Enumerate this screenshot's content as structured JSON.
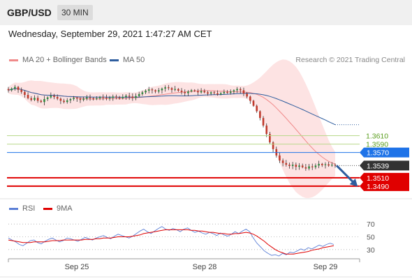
{
  "header": {
    "pair": "GBP/USD",
    "timeframe": "30 MIN"
  },
  "timestamp": "Wednesday, September 29, 2021 1:47:27 AM CET",
  "legend": {
    "bollinger": {
      "label": "MA 20 + Bollinger Bands",
      "color": "#f08a8a"
    },
    "ma50": {
      "label": "MA 50",
      "color": "#2e5d9e"
    }
  },
  "credit": "Research © 2021 Trading Central",
  "rsi_legend": {
    "rsi": {
      "label": "RSI",
      "color": "#5b7fd6"
    },
    "ma9": {
      "label": "9MA",
      "color": "#e00000"
    }
  },
  "chart_data": [
    {
      "type": "candlestick",
      "ylim": [
        1.3465,
        1.3775
      ],
      "levels": [
        {
          "label": "1.3610",
          "value": 1.361,
          "color": "#7cb342",
          "style": "line-green"
        },
        {
          "label": "1.3590",
          "value": 1.359,
          "color": "#7cb342",
          "style": "line-green"
        },
        {
          "label": "1.3570",
          "value": 1.357,
          "color": "#1e73e8",
          "style": "badge-blue"
        },
        {
          "label": "1.3539",
          "value": 1.3539,
          "color": "#333333",
          "style": "badge-dark"
        },
        {
          "label": "1.3510",
          "value": 1.351,
          "color": "#e00000",
          "style": "badge-red"
        },
        {
          "label": "1.3490",
          "value": 1.349,
          "color": "#e00000",
          "style": "badge-red"
        }
      ],
      "x_ticks": [
        "Sep 25",
        "Sep 28",
        "Sep 29"
      ],
      "close": [
        1.3718,
        1.3722,
        1.3726,
        1.3719,
        1.3714,
        1.3707,
        1.3699,
        1.3695,
        1.37,
        1.3693,
        1.369,
        1.3697,
        1.3701,
        1.3705,
        1.3702,
        1.3698,
        1.3693,
        1.369,
        1.3694,
        1.3697,
        1.37,
        1.3698,
        1.3695,
        1.3698,
        1.3701,
        1.3699,
        1.3697,
        1.3699,
        1.3702,
        1.37,
        1.3698,
        1.37,
        1.3703,
        1.3701,
        1.3699,
        1.3702,
        1.3705,
        1.3703,
        1.37,
        1.3704,
        1.3709,
        1.3713,
        1.3717,
        1.372,
        1.3718,
        1.3715,
        1.3718,
        1.3722,
        1.3725,
        1.3723,
        1.3719,
        1.3721,
        1.3717,
        1.3714,
        1.3711,
        1.3715,
        1.3718,
        1.3716,
        1.3713,
        1.3716,
        1.3713,
        1.371,
        1.3713,
        1.3711,
        1.3708,
        1.3711,
        1.3714,
        1.3712,
        1.3715,
        1.3718,
        1.3721,
        1.3718,
        1.371,
        1.3703,
        1.3693,
        1.3681,
        1.3668,
        1.3652,
        1.3634,
        1.3614,
        1.3594,
        1.3578,
        1.3563,
        1.3551,
        1.3545,
        1.3541,
        1.3538,
        1.3541,
        1.3536,
        1.3539,
        1.3535,
        1.3532,
        1.3537,
        1.3535,
        1.3539,
        1.3543,
        1.354,
        1.3542,
        1.3539,
        1.3541,
        1.3539
      ]
    },
    {
      "type": "line",
      "title": "RSI",
      "ylim": [
        20,
        80
      ],
      "y_ticks": [
        70,
        50,
        30
      ],
      "rsi": [
        48,
        45,
        42,
        38,
        36,
        40,
        44,
        45,
        41,
        39,
        43,
        46,
        48,
        45,
        42,
        44,
        48,
        47,
        45,
        43,
        46,
        49,
        47,
        45,
        48,
        50,
        52,
        49,
        47,
        51,
        54,
        52,
        50,
        48,
        51,
        55,
        59,
        62,
        58,
        55,
        59,
        63,
        66,
        62,
        60,
        63,
        61,
        58,
        62,
        64,
        60,
        57,
        59,
        56,
        54,
        57,
        55,
        52,
        56,
        53,
        51,
        54,
        58,
        55,
        59,
        62,
        58,
        48,
        40,
        34,
        28,
        24,
        21,
        22,
        20,
        24,
        22,
        26,
        25,
        28,
        31,
        29,
        33,
        31,
        34,
        37,
        35,
        38,
        40,
        38
      ],
      "ma9": [
        45,
        44,
        43,
        42,
        41,
        41,
        41,
        42,
        42,
        42,
        42,
        43,
        44,
        44,
        44,
        45,
        45,
        45,
        45,
        45,
        45,
        46,
        46,
        46,
        47,
        47,
        48,
        48,
        48,
        49,
        50,
        50,
        50,
        50,
        51,
        52,
        53,
        55,
        56,
        57,
        58,
        59,
        60,
        61,
        61,
        61,
        61,
        61,
        61,
        61,
        60,
        60,
        59,
        59,
        58,
        57,
        57,
        56,
        55,
        55,
        54,
        54,
        55,
        55,
        56,
        57,
        56,
        54,
        51,
        47,
        43,
        38,
        34,
        30,
        27,
        25,
        23,
        23,
        23,
        24,
        25,
        26,
        27,
        29,
        30,
        31,
        33,
        34,
        35,
        36
      ]
    }
  ]
}
